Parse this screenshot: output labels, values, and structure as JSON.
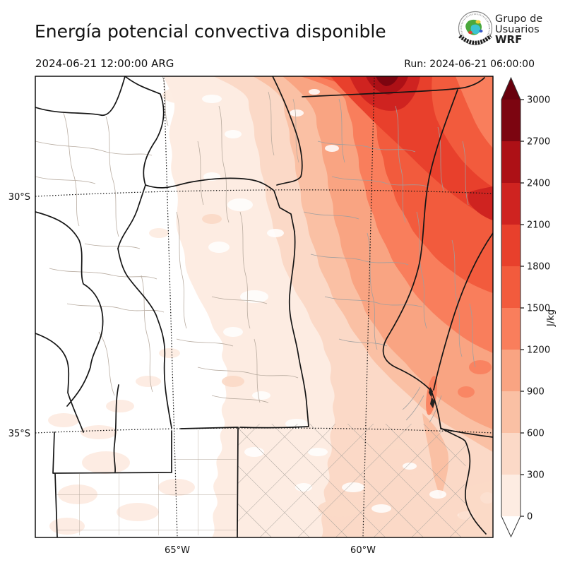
{
  "header": {
    "title": "Energía potencial convectiva disponible",
    "valid_time": "2024-06-21 12:00:00 ARG",
    "run_label": "Run: 2024-06-21 06:00:00"
  },
  "logo": {
    "org_line1": "Grupo de",
    "org_line2": "Usuarios",
    "org_line3": "WRF"
  },
  "map": {
    "lat_ticks": [
      "30°S",
      "35°S"
    ],
    "lon_ticks": [
      "65°W",
      "60°W"
    ]
  },
  "colorbar": {
    "unit": "J/kg",
    "tick_labels": [
      "3000",
      "2700",
      "2400",
      "2100",
      "1800",
      "1500",
      "1200",
      "900",
      "600",
      "300",
      "0"
    ],
    "levels_j_per_kg": [
      0,
      300,
      600,
      900,
      1200,
      1500,
      1800,
      2100,
      2400,
      2700,
      3000
    ],
    "segment_colors_top_to_bottom": [
      "#7c0510",
      "#ad1016",
      "#cf2320",
      "#e8402c",
      "#f25b3d",
      "#f97e5c",
      "#f9a482",
      "#fac0a4",
      "#fbd9c7",
      "#fdece2"
    ],
    "over_color": "#67000d",
    "under_color": "#ffffff"
  }
}
